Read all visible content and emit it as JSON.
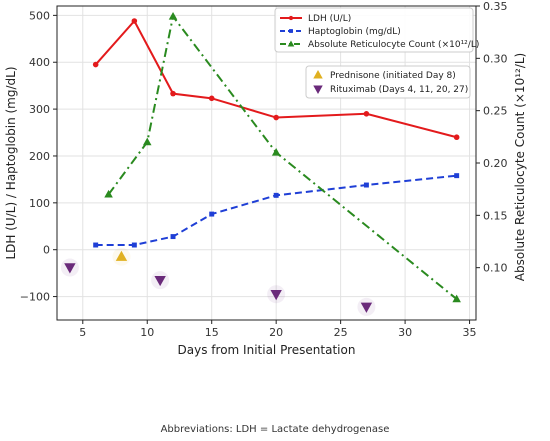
{
  "chart_data": {
    "type": "line",
    "xlabel": "Days from Initial Presentation",
    "ylabel_left": "LDH (U/L) / Haptoglobin (mg/dL)",
    "ylabel_right": "Absolute Reticulocyte Count (×10¹²/L)",
    "xlim": [
      3,
      35.5
    ],
    "ylim_left": [
      -150,
      520
    ],
    "ylim_right": [
      0.05,
      0.35
    ],
    "x_ticks": [
      5,
      10,
      15,
      20,
      25,
      30,
      35
    ],
    "y_ticks_left": [
      -100,
      0,
      100,
      200,
      300,
      400,
      500
    ],
    "y_ticks_right": [
      0.1,
      0.15,
      0.2,
      0.25,
      0.3,
      0.35
    ],
    "y_tick_labels_right": [
      "0.10",
      "0.15",
      "0.20",
      "0.25",
      "0.30",
      "0.35"
    ],
    "grid": true,
    "series": [
      {
        "name": "LDH (U/L)",
        "axis": "left",
        "color": "#e31a1c",
        "marker": "circle",
        "style": "solid",
        "x": [
          6,
          9,
          12,
          15,
          20,
          27,
          34
        ],
        "values": [
          395,
          488,
          333,
          323,
          282,
          290,
          240
        ]
      },
      {
        "name": "Haptoglobin (mg/dL)",
        "axis": "left",
        "color": "#1f3fd6",
        "marker": "square",
        "style": "dashed",
        "x": [
          6,
          9,
          12,
          15,
          20,
          27,
          34
        ],
        "values": [
          10,
          10,
          28,
          76,
          116,
          138,
          158
        ]
      },
      {
        "name": "Absolute Reticulocyte Count (×10¹²/L)",
        "axis": "right",
        "color": "#2a8a1f",
        "marker": "triangle-up",
        "style": "dashdot",
        "x": [
          7,
          10,
          12,
          20,
          34
        ],
        "values": [
          0.17,
          0.22,
          0.34,
          0.21,
          0.07
        ]
      }
    ],
    "events": [
      {
        "name": "Prednisone (initiated Day 8)",
        "color": "#e0b020",
        "marker": "triangle-up",
        "points": [
          {
            "x": 8,
            "y": -15
          }
        ]
      },
      {
        "name": "Rituximab (Days 4, 11, 20, 27)",
        "color": "#6a2a7a",
        "marker": "triangle-down",
        "points": [
          {
            "x": 4,
            "y": -38
          },
          {
            "x": 11,
            "y": -65
          },
          {
            "x": 20,
            "y": -95
          },
          {
            "x": 27,
            "y": -122
          }
        ]
      }
    ],
    "legend_placement": "top-right",
    "footnote": "Abbreviations: LDH = Lactate dehydrogenase"
  }
}
